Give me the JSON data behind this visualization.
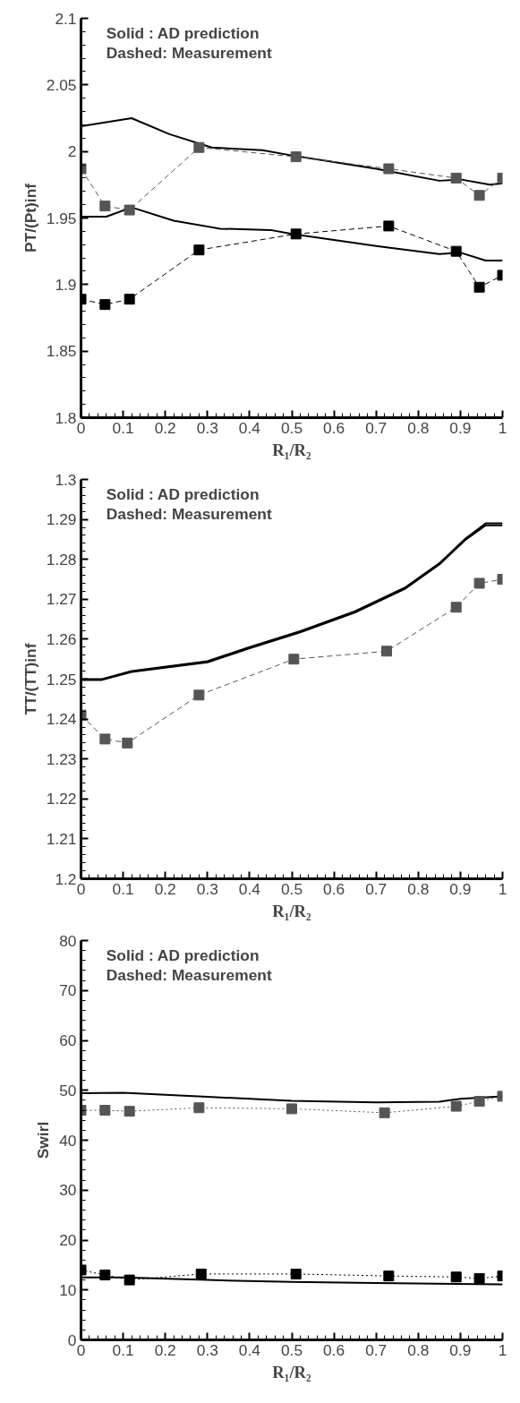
{
  "chart_data": [
    {
      "type": "line",
      "xlabel": "R₁/R₂",
      "ylabel": "PT/(Pt)inf",
      "annotations": [
        "Solid   : AD prediction",
        "Dashed: Measurement"
      ],
      "xlim": [
        0,
        1
      ],
      "ylim": [
        1.8,
        2.1
      ],
      "xticks": [
        0,
        0.1,
        0.2,
        0.3,
        0.4,
        0.5,
        0.6,
        0.7,
        0.8,
        0.9,
        1
      ],
      "yticks": [
        1.8,
        1.85,
        1.9,
        1.95,
        2,
        2.05,
        2.1
      ],
      "grid": false,
      "series": [
        {
          "color": "#000000",
          "line_style": "solid",
          "marker": "none",
          "x": [
            0,
            0.12,
            0.21,
            0.31,
            0.43,
            0.5,
            0.6,
            0.7,
            0.85,
            0.9,
            0.97,
            1
          ],
          "values": [
            2.019,
            2.025,
            2.013,
            2.003,
            2.001,
            1.997,
            1.992,
            1.987,
            1.978,
            1.979,
            1.975,
            1.976
          ]
        },
        {
          "color": "#000000",
          "line_style": "solid",
          "marker": "none",
          "x": [
            0,
            0.06,
            0.12,
            0.22,
            0.33,
            0.45,
            0.5,
            0.7,
            0.85,
            0.9,
            0.96,
            1
          ],
          "values": [
            1.951,
            1.951,
            1.958,
            1.948,
            1.942,
            1.941,
            1.938,
            1.929,
            1.923,
            1.924,
            1.918,
            1.918
          ]
        },
        {
          "color": "#555555",
          "line_style": "dashed",
          "marker": "square",
          "x": [
            0,
            0.057,
            0.115,
            0.28,
            0.51,
            0.73,
            0.89,
            0.945,
            1
          ],
          "values": [
            1.987,
            1.959,
            1.956,
            2.003,
            1.996,
            1.987,
            1.98,
            1.967,
            1.98
          ]
        },
        {
          "color": "#000000",
          "line_style": "dashed",
          "marker": "square",
          "x": [
            0,
            0.057,
            0.115,
            0.28,
            0.51,
            0.73,
            0.89,
            0.945,
            1
          ],
          "values": [
            1.889,
            1.885,
            1.889,
            1.926,
            1.938,
            1.944,
            1.925,
            1.898,
            1.907
          ]
        }
      ]
    },
    {
      "type": "line",
      "xlabel": "R₁/R₂",
      "ylabel": "TT/(TT)inf",
      "annotations": [
        "Solid   : AD prediction",
        "Dashed: Measurement"
      ],
      "xlim": [
        0,
        1
      ],
      "ylim": [
        1.2,
        1.3
      ],
      "xticks": [
        0,
        0.1,
        0.2,
        0.3,
        0.4,
        0.5,
        0.6,
        0.7,
        0.8,
        0.9,
        1
      ],
      "yticks": [
        1.2,
        1.21,
        1.22,
        1.23,
        1.24,
        1.25,
        1.26,
        1.27,
        1.28,
        1.29,
        1.3
      ],
      "grid": false,
      "series": [
        {
          "color": "#000000",
          "line_style": "solid",
          "marker": "none",
          "x": [
            0,
            0.05,
            0.12,
            0.3,
            0.4,
            0.52,
            0.65,
            0.77,
            0.85,
            0.91,
            0.96,
            1
          ],
          "values": [
            1.25,
            1.25,
            1.252,
            1.2545,
            1.258,
            1.262,
            1.267,
            1.273,
            1.279,
            1.285,
            1.289,
            1.289
          ]
        },
        {
          "color": "#000000",
          "line_style": "solid",
          "marker": "none",
          "x": [
            0,
            0.05,
            0.12,
            0.3,
            0.4,
            0.52,
            0.65,
            0.77,
            0.85,
            0.91,
            0.96,
            1
          ],
          "values": [
            1.2498,
            1.2498,
            1.2518,
            1.2542,
            1.2577,
            1.2617,
            1.2667,
            1.2727,
            1.2787,
            1.2847,
            1.2885,
            1.2885
          ]
        },
        {
          "color": "#555555",
          "line_style": "dashed",
          "marker": "square",
          "x": [
            0,
            0.057,
            0.11,
            0.28,
            0.505,
            0.725,
            0.89,
            0.945,
            1
          ],
          "values": [
            1.241,
            1.235,
            1.234,
            1.246,
            1.255,
            1.257,
            1.268,
            1.274,
            1.275
          ]
        }
      ]
    },
    {
      "type": "line",
      "xlabel": "R₁/R₂",
      "ylabel": "Swirl",
      "annotations": [
        "Solid   : AD prediction",
        "Dashed: Measurement"
      ],
      "xlim": [
        0,
        1
      ],
      "ylim": [
        0,
        80
      ],
      "xticks": [
        0,
        0.1,
        0.2,
        0.3,
        0.4,
        0.5,
        0.6,
        0.7,
        0.8,
        0.9,
        1
      ],
      "yticks": [
        0,
        10,
        20,
        30,
        40,
        50,
        60,
        70,
        80
      ],
      "grid": false,
      "series": [
        {
          "color": "#000000",
          "line_style": "solid",
          "marker": "none",
          "x": [
            0,
            0.1,
            0.3,
            0.5,
            0.7,
            0.85,
            0.9,
            1
          ],
          "values": [
            49.4,
            49.5,
            48.7,
            47.9,
            47.6,
            47.7,
            48.3,
            48.8
          ]
        },
        {
          "color": "#000000",
          "line_style": "solid",
          "marker": "none",
          "x": [
            0,
            0.1,
            0.3,
            0.5,
            0.7,
            1
          ],
          "values": [
            12.5,
            12.5,
            12,
            11.6,
            11.4,
            11.1
          ]
        },
        {
          "color": "#555555",
          "line_style": "dotted",
          "marker": "square",
          "x": [
            0,
            0.057,
            0.115,
            0.28,
            0.5,
            0.72,
            0.89,
            0.945,
            1
          ],
          "values": [
            46,
            46,
            45.8,
            46.5,
            46.3,
            45.5,
            46.8,
            47.8,
            48.8
          ]
        },
        {
          "color": "#000000",
          "line_style": "dotted",
          "marker": "square",
          "x": [
            0,
            0.057,
            0.115,
            0.285,
            0.51,
            0.73,
            0.89,
            0.945,
            1
          ],
          "values": [
            14,
            13,
            12,
            13.2,
            13.2,
            12.8,
            12.6,
            12.3,
            12.8
          ]
        }
      ]
    }
  ]
}
